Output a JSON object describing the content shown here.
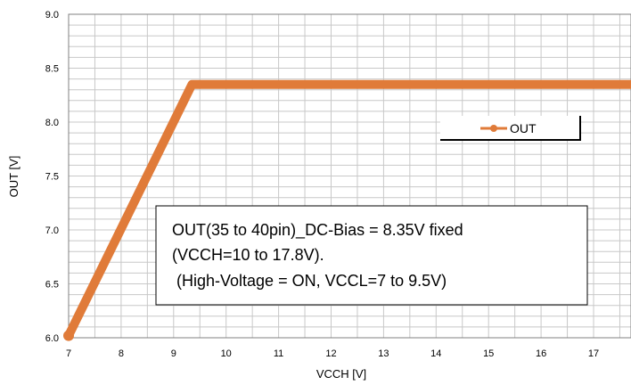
{
  "chart_data": {
    "type": "line",
    "xlabel": "VCCH [V]",
    "ylabel": "OUT [V]",
    "xlim": [
      7,
      17.8
    ],
    "ylim": [
      6.0,
      9.0
    ],
    "x_ticks": [
      7,
      8,
      9,
      10,
      11,
      12,
      13,
      14,
      15,
      16,
      17
    ],
    "y_ticks": [
      6.0,
      6.5,
      7.0,
      7.5,
      8.0,
      8.5,
      9.0
    ],
    "y_tick_labels": [
      "6.0",
      "6.5",
      "7.0",
      "7.5",
      "8.0",
      "8.5",
      "9.0"
    ],
    "grid": true,
    "legend_position": "right",
    "series": [
      {
        "name": "OUT",
        "color": "#E07B39",
        "x": [
          7,
          9.35,
          17.8
        ],
        "y": [
          6.02,
          8.35,
          8.35
        ]
      }
    ],
    "annotation": [
      "OUT(35 to 40pin)_DC-Bias = 8.35V fixed",
      "(VCCH=10 to 17.8V).",
      " (High-Voltage = ON, VCCL=7 to 9.5V)"
    ]
  }
}
